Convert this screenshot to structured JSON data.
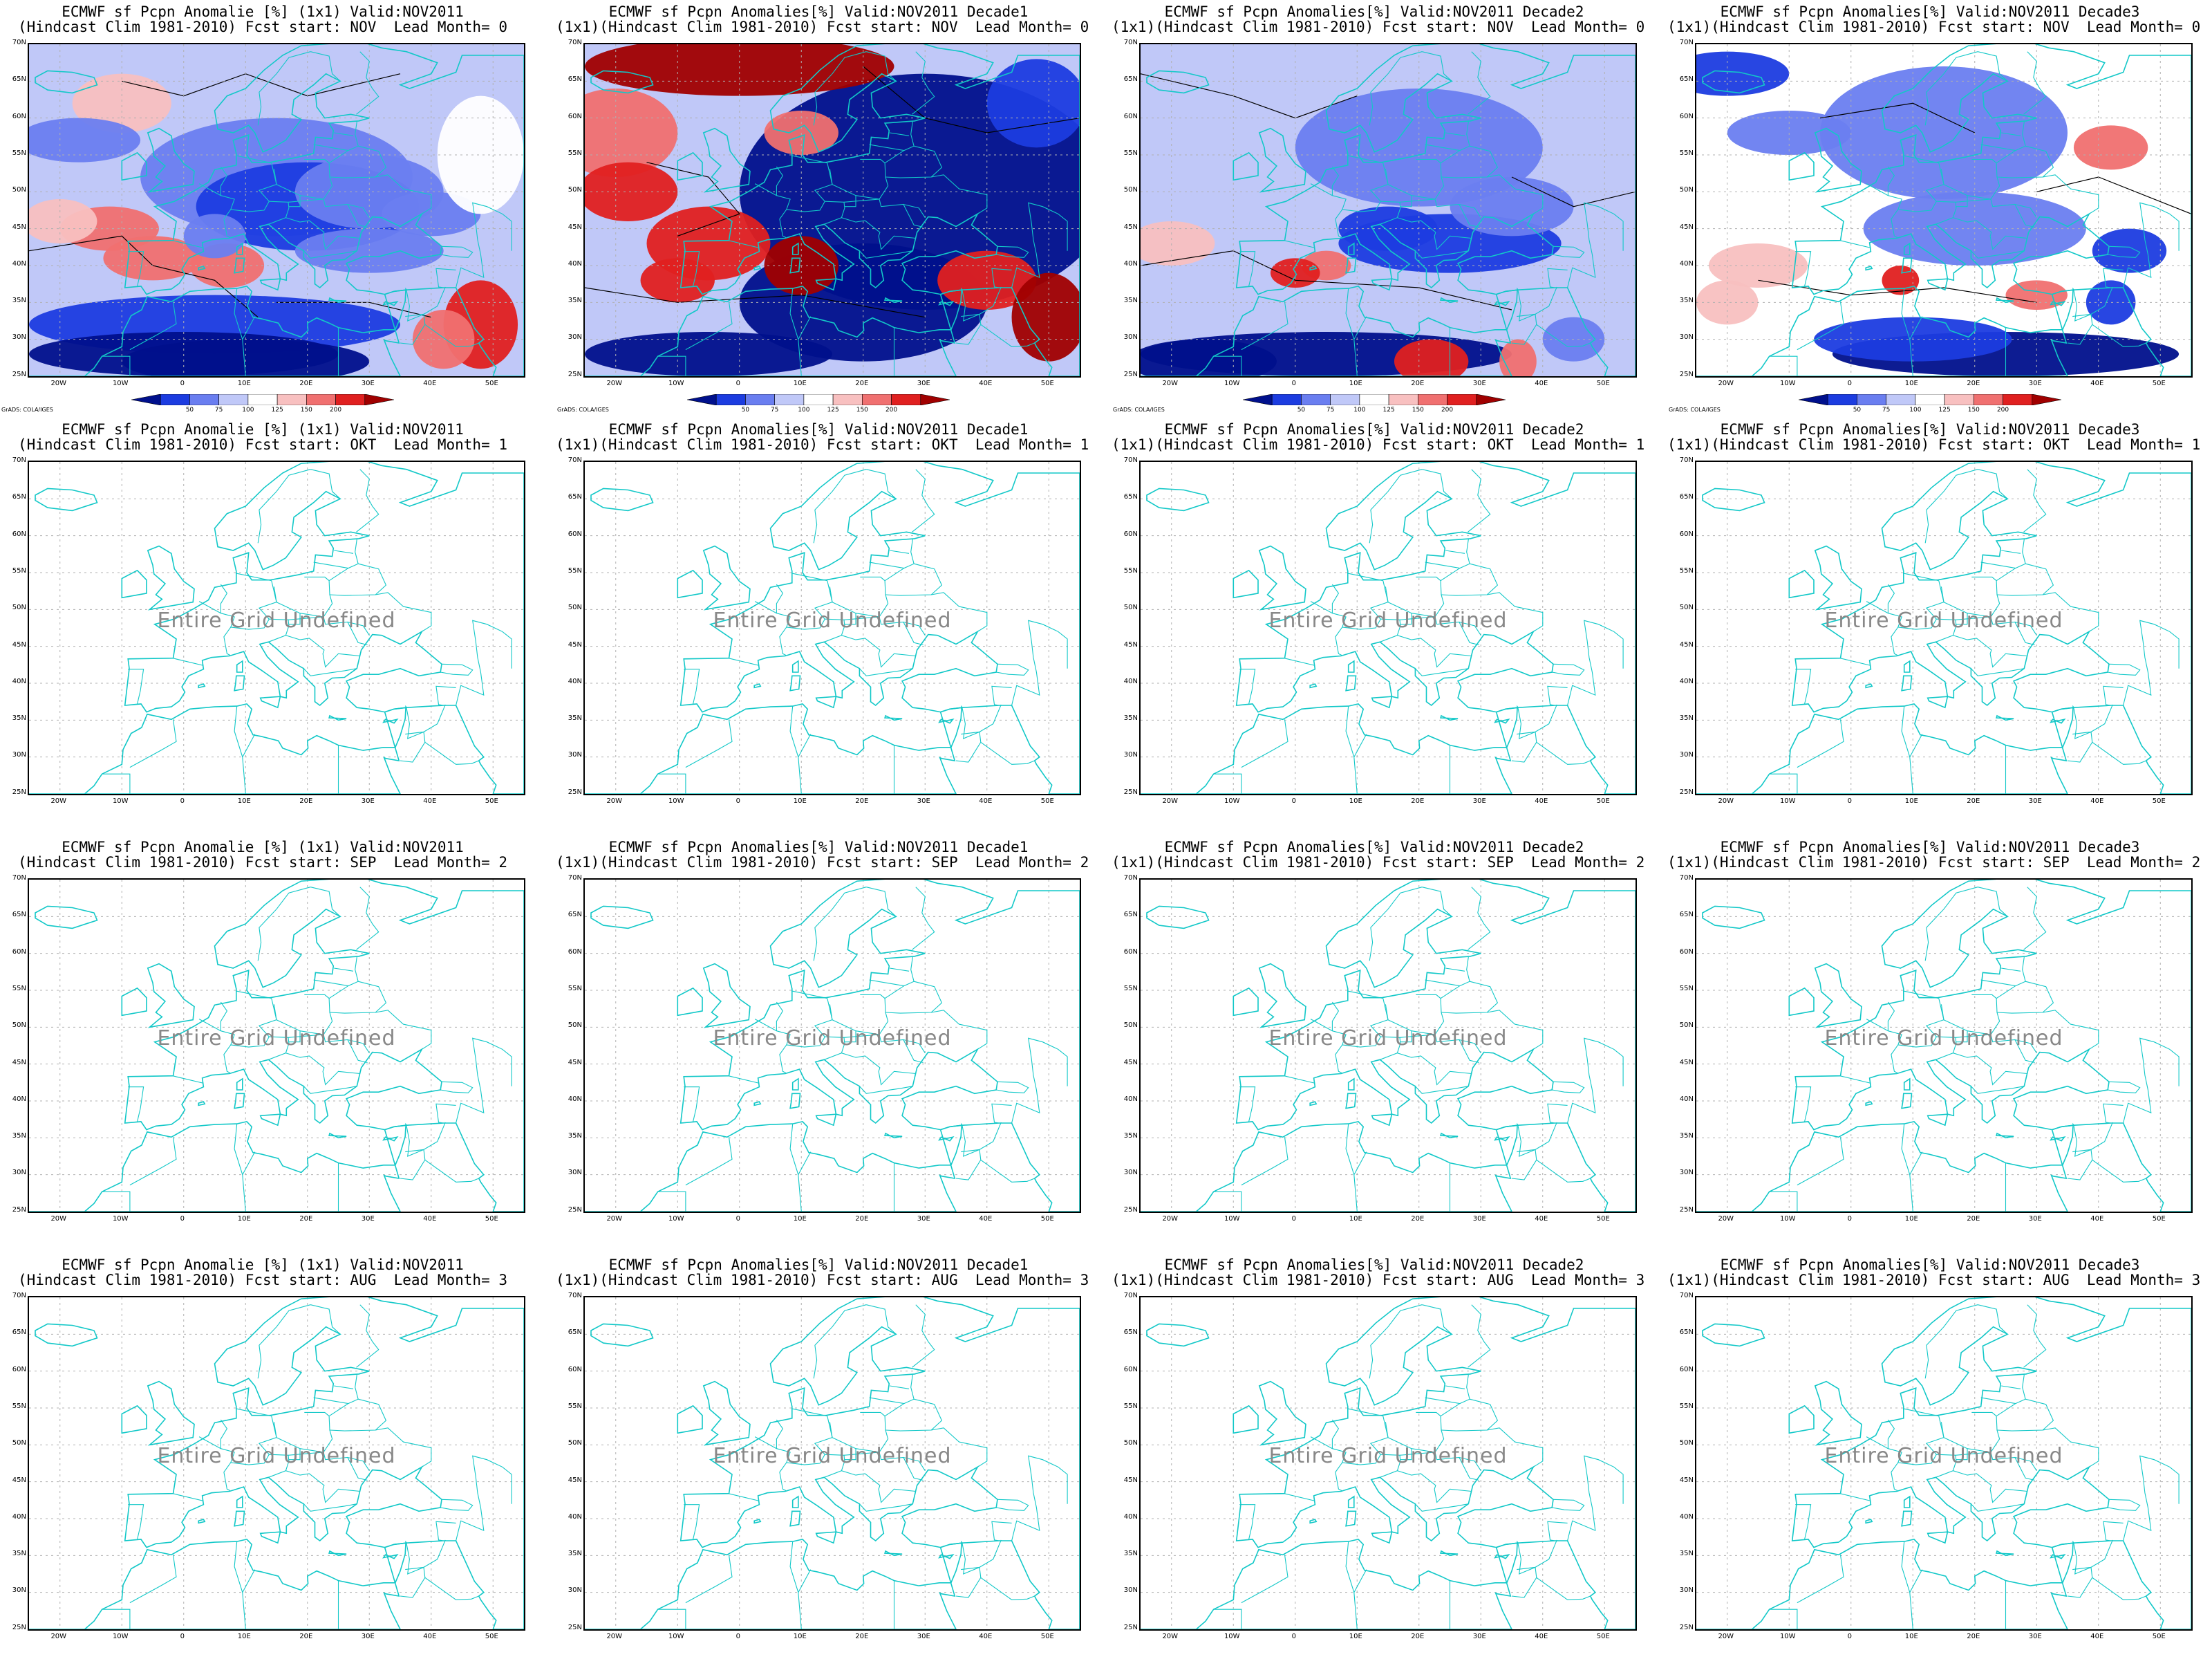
{
  "map": {
    "lat_labels": [
      "70N",
      "65N",
      "60N",
      "55N",
      "50N",
      "45N",
      "40N",
      "35N",
      "30N",
      "25N"
    ],
    "lon_labels": [
      "20W",
      "10W",
      "0",
      "10E",
      "20E",
      "30E",
      "40E",
      "50E"
    ],
    "undefined_text": "Entire Grid Undefined",
    "credit": "GrADS: COLA/IGES"
  },
  "colorbar": {
    "labels": [
      "50",
      "75",
      "100",
      "125",
      "150",
      "200"
    ],
    "colors": [
      "#00108c",
      "#1c3ce0",
      "#6a7ef0",
      "#c0c8f8",
      "#ffffff",
      "#f8c0c0",
      "#f07070",
      "#e02020",
      "#a00000"
    ]
  },
  "colors": {
    "coast": "#12c8c8",
    "contour": "#000000",
    "grid": "#b0b0b0"
  },
  "panels": [
    {
      "title1": "ECMWF sf Pcpn Anomalie [%] (1x1) Valid:NOV2011",
      "title2": "(Hindcast Clim 1981-2010) Fcst start: NOV  Lead Month= 0",
      "filled": true
    },
    {
      "title1": "ECMWF sf Pcpn Anomalies[%] Valid:NOV2011 Decade1",
      "title2": "(1x1)(Hindcast Clim 1981-2010) Fcst start: NOV  Lead Month= 0",
      "filled": true
    },
    {
      "title1": "ECMWF sf Pcpn Anomalies[%] Valid:NOV2011 Decade2",
      "title2": "(1x1)(Hindcast Clim 1981-2010) Fcst start: NOV  Lead Month= 0",
      "filled": true
    },
    {
      "title1": "ECMWF sf Pcpn Anomalies[%] Valid:NOV2011 Decade3",
      "title2": "(1x1)(Hindcast Clim 1981-2010) Fcst start: NOV  Lead Month= 0",
      "filled": true
    },
    {
      "title1": "ECMWF sf Pcpn Anomalie [%] (1x1) Valid:NOV2011",
      "title2": "(Hindcast Clim 1981-2010) Fcst start: OKT  Lead Month= 1",
      "filled": false
    },
    {
      "title1": "ECMWF sf Pcpn Anomalies[%] Valid:NOV2011 Decade1",
      "title2": "(1x1)(Hindcast Clim 1981-2010) Fcst start: OKT  Lead Month= 1",
      "filled": false
    },
    {
      "title1": "ECMWF sf Pcpn Anomalies[%] Valid:NOV2011 Decade2",
      "title2": "(1x1)(Hindcast Clim 1981-2010) Fcst start: OKT  Lead Month= 1",
      "filled": false
    },
    {
      "title1": "ECMWF sf Pcpn Anomalies[%] Valid:NOV2011 Decade3",
      "title2": "(1x1)(Hindcast Clim 1981-2010) Fcst start: OKT  Lead Month= 1",
      "filled": false
    },
    {
      "title1": "ECMWF sf Pcpn Anomalie [%] (1x1) Valid:NOV2011",
      "title2": "(Hindcast Clim 1981-2010) Fcst start: SEP  Lead Month= 2",
      "filled": false
    },
    {
      "title1": "ECMWF sf Pcpn Anomalies[%] Valid:NOV2011 Decade1",
      "title2": "(1x1)(Hindcast Clim 1981-2010) Fcst start: SEP  Lead Month= 2",
      "filled": false
    },
    {
      "title1": "ECMWF sf Pcpn Anomalies[%] Valid:NOV2011 Decade2",
      "title2": "(1x1)(Hindcast Clim 1981-2010) Fcst start: SEP  Lead Month= 2",
      "filled": false
    },
    {
      "title1": "ECMWF sf Pcpn Anomalies[%] Valid:NOV2011 Decade3",
      "title2": "(1x1)(Hindcast Clim 1981-2010) Fcst start: SEP  Lead Month= 2",
      "filled": false
    },
    {
      "title1": "ECMWF sf Pcpn Anomalie [%] (1x1) Valid:NOV2011",
      "title2": "(Hindcast Clim 1981-2010) Fcst start: AUG  Lead Month= 3",
      "filled": false
    },
    {
      "title1": "ECMWF sf Pcpn Anomalies[%] Valid:NOV2011 Decade1",
      "title2": "(1x1)(Hindcast Clim 1981-2010) Fcst start: AUG  Lead Month= 3",
      "filled": false
    },
    {
      "title1": "ECMWF sf Pcpn Anomalies[%] Valid:NOV2011 Decade2",
      "title2": "(1x1)(Hindcast Clim 1981-2010) Fcst start: AUG  Lead Month= 3",
      "filled": false
    },
    {
      "title1": "ECMWF sf Pcpn Anomalies[%] Valid:NOV2011 Decade3",
      "title2": "(1x1)(Hindcast Clim 1981-2010) Fcst start: AUG  Lead Month= 3",
      "filled": false
    }
  ]
}
